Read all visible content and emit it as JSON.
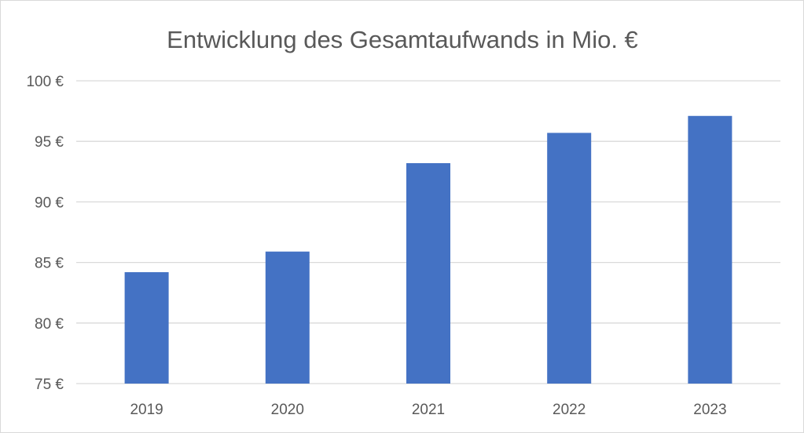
{
  "chart_data": {
    "type": "bar",
    "title": "Entwicklung des Gesamtaufwands in Mio. €",
    "xlabel": "",
    "ylabel": "",
    "categories": [
      "2019",
      "2020",
      "2021",
      "2022",
      "2023"
    ],
    "series": [
      {
        "values": [
          84.2,
          85.9,
          93.2,
          95.7,
          97.1
        ]
      }
    ],
    "ylim": [
      75,
      100
    ],
    "y_ticks": [
      75,
      80,
      85,
      90,
      95,
      100
    ],
    "y_tick_labels": [
      "75 €",
      "80 €",
      "85 €",
      "90 €",
      "95 €",
      "100 €"
    ],
    "grid": true,
    "legend": "none",
    "colors": {
      "bar": "#4472C4",
      "grid": "#D9D9D9",
      "text": "#595959"
    }
  }
}
